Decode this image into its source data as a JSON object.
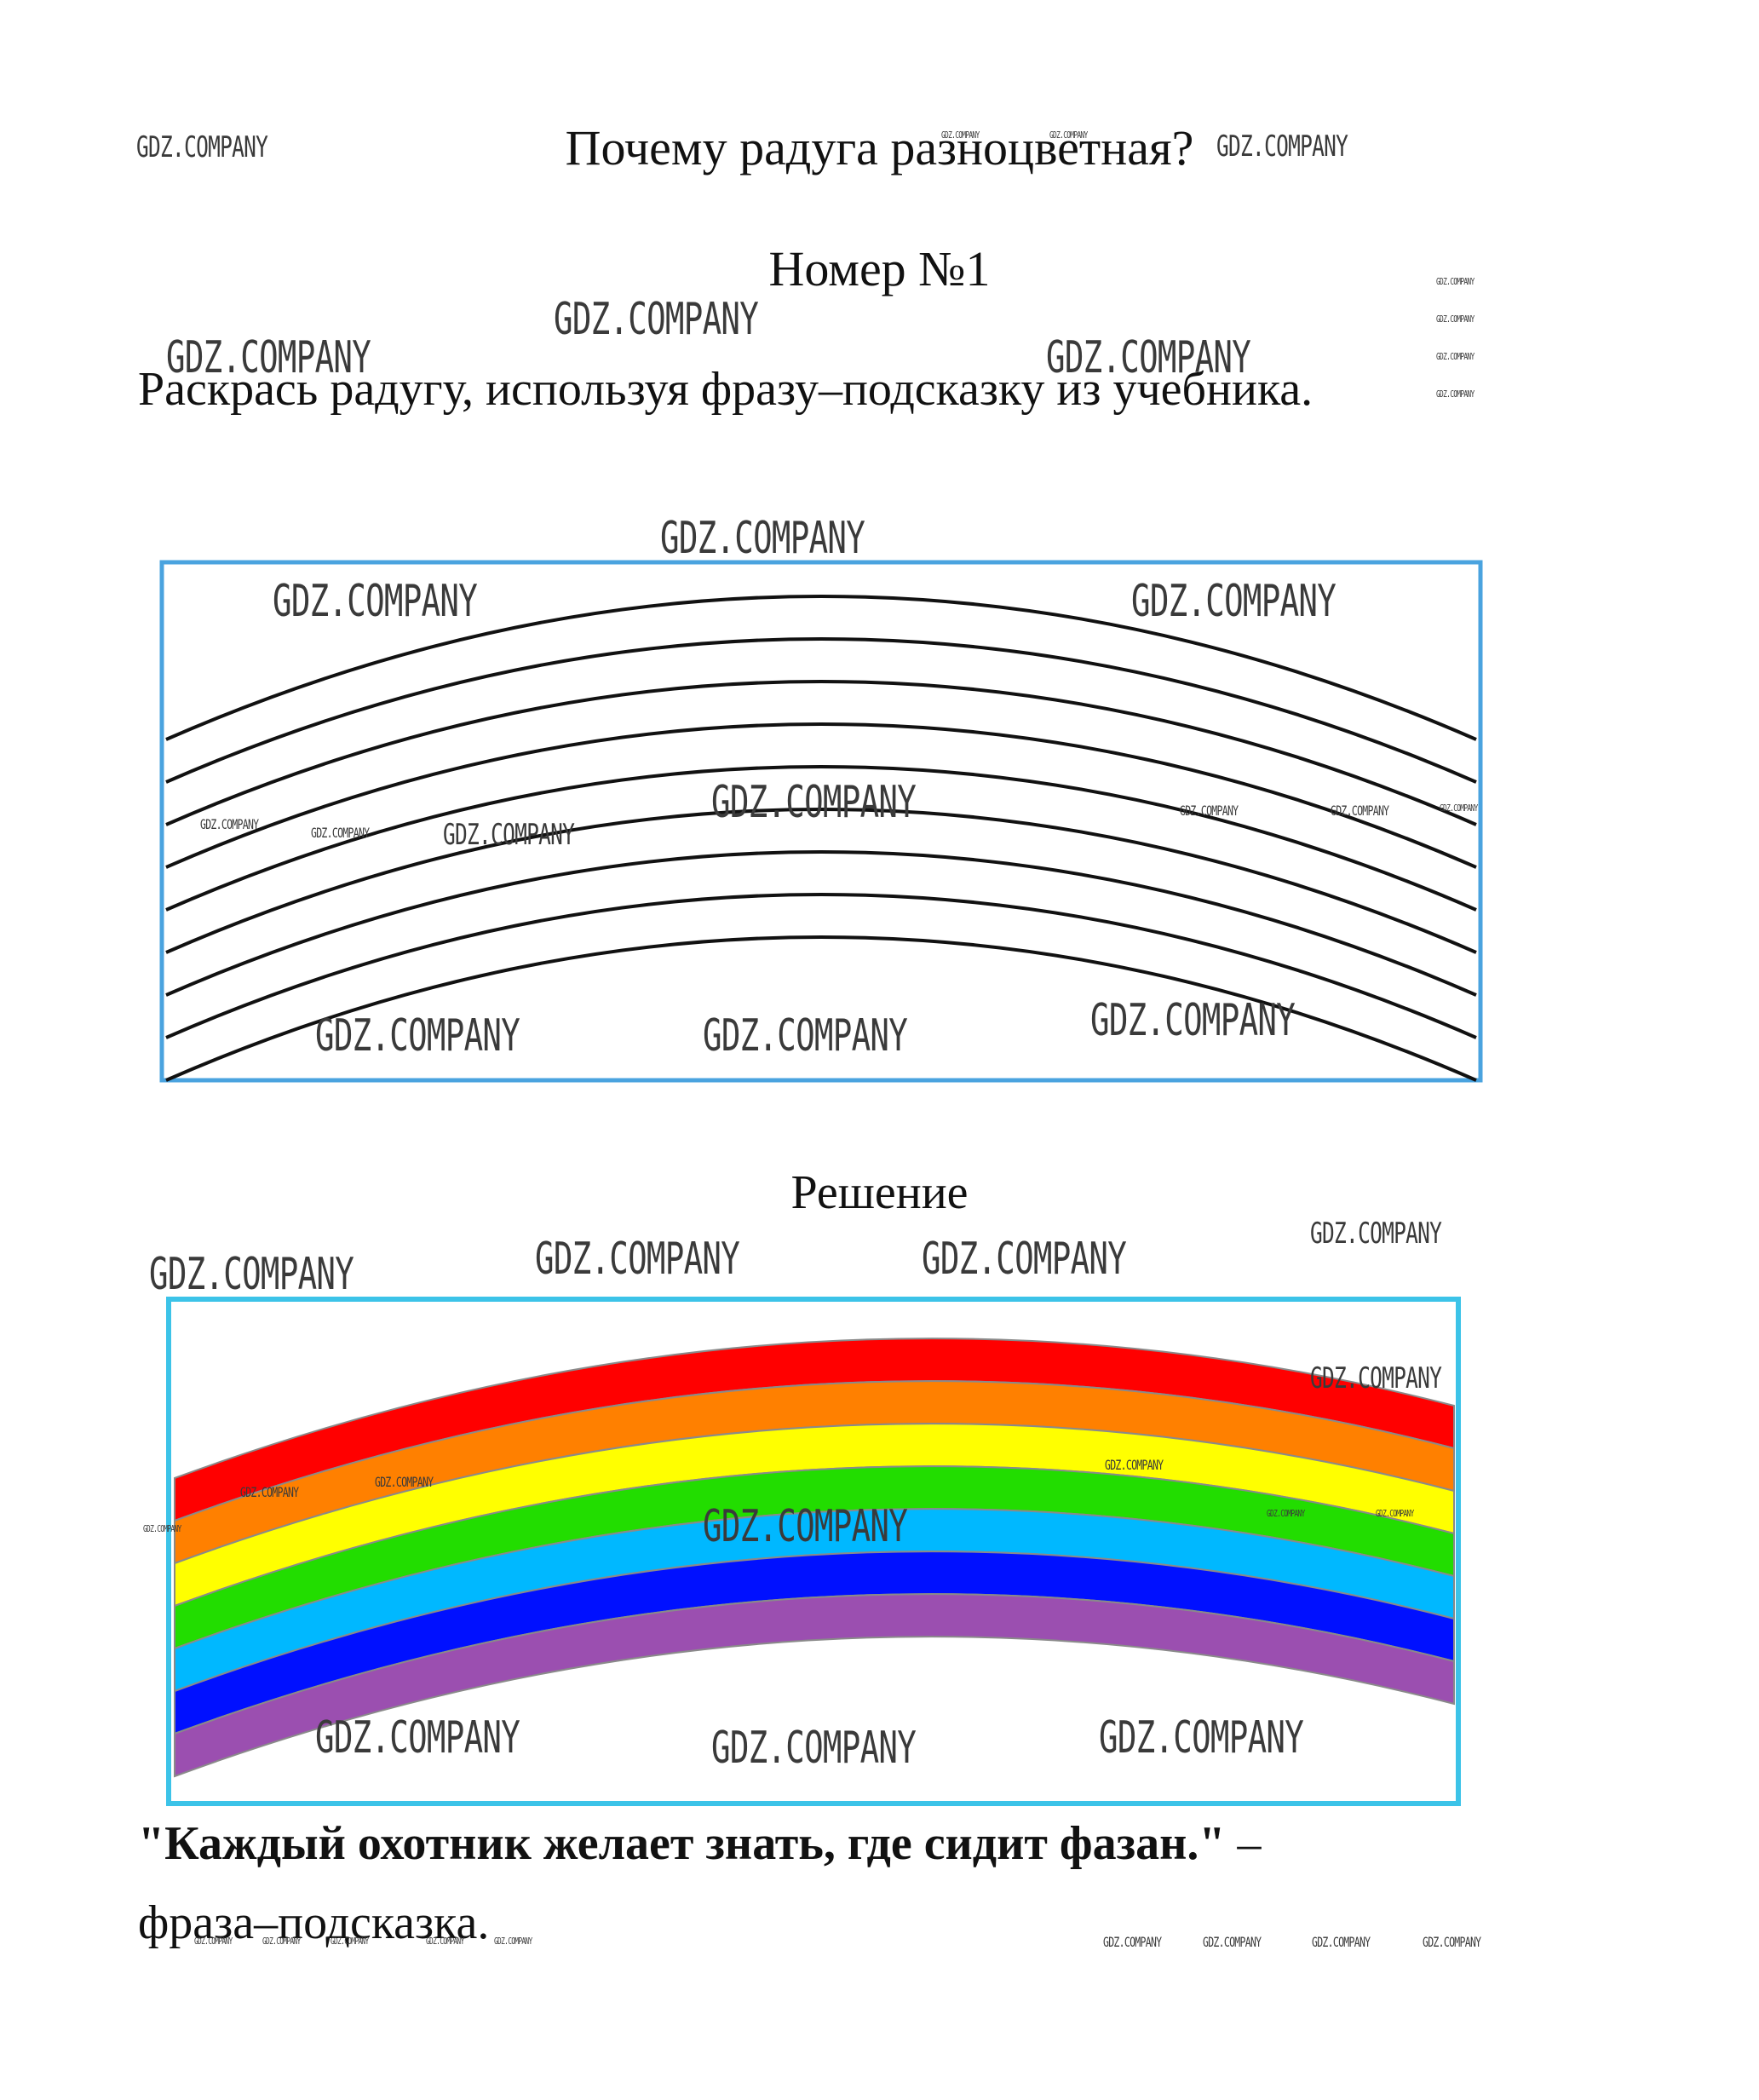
{
  "title": "Почему радуга разноцветная?",
  "task_number": "Номер №1",
  "instruction": "Раскрась радугу, используя фразу–подсказку из учебника.",
  "solution_heading": "Решение",
  "hint": {
    "quote": "\"Каждый охотник желает знать, где сидит фазан.\"",
    "dash": " –",
    "label": "фраза–подсказка."
  },
  "watermark": "GDZ.COMPANY",
  "colors": {
    "frame_blue": "#4aa3df",
    "frame_cyan": "#3cc3e8",
    "rainbow": [
      "#ff0000",
      "#ff8000",
      "#ffff00",
      "#22dd00",
      "#00b8ff",
      "#0010ff",
      "#9b4fb0"
    ]
  }
}
